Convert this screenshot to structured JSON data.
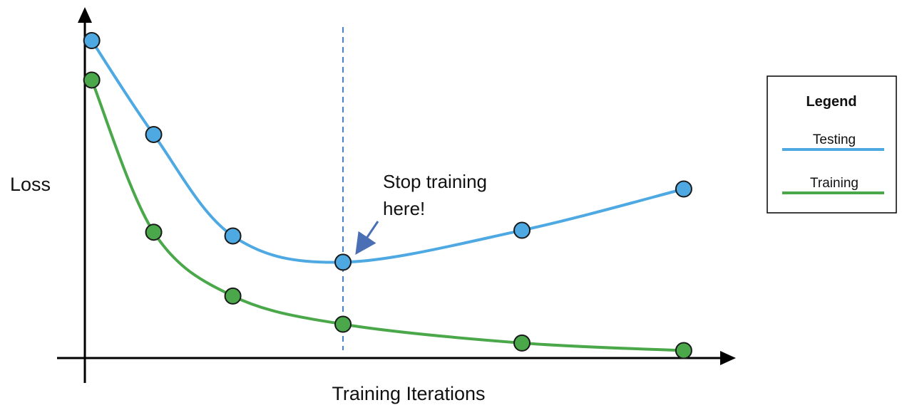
{
  "chart_data": {
    "type": "line",
    "title": "",
    "xlabel": "Training Iterations",
    "ylabel": "Loss",
    "grid": false,
    "legend": {
      "title": "Legend",
      "position": "right",
      "entries": [
        "Testing",
        "Training"
      ]
    },
    "series": [
      {
        "name": "Testing",
        "color": "#4ea9e3",
        "x": [
          0.2,
          2.0,
          4.3,
          7.5,
          12.7,
          17.4
        ],
        "y": [
          8.45,
          5.95,
          3.25,
          2.55,
          3.4,
          4.5
        ]
      },
      {
        "name": "Training",
        "color": "#4aa74a",
        "x": [
          0.2,
          2.0,
          4.3,
          7.5,
          12.7,
          17.4
        ],
        "y": [
          7.4,
          3.35,
          1.65,
          0.9,
          0.4,
          0.2
        ]
      }
    ],
    "xlim": [
      0,
      18.5
    ],
    "ylim": [
      0,
      9
    ],
    "vline": {
      "x": 7.5,
      "color": "#4a80c8"
    },
    "annotation": {
      "lines": [
        "Stop training",
        "here!"
      ],
      "arrow_color": "#4a6fb5"
    }
  }
}
